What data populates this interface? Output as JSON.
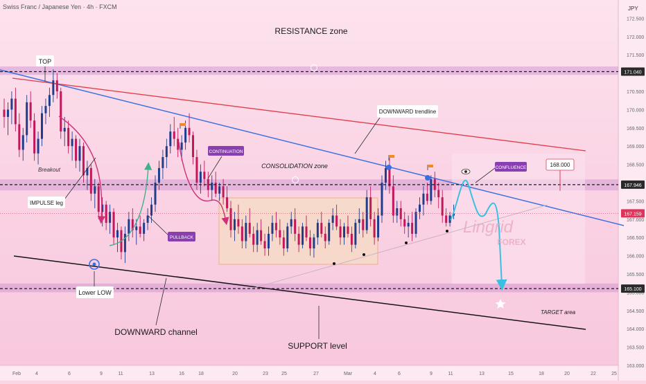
{
  "header": {
    "instrument": "Swiss Franc / Japanese Yen · 4h · FXCM",
    "currency": "JPY"
  },
  "chart_data": {
    "type": "candlestick",
    "ylim": [
      163.0,
      173.0
    ],
    "y_ticks": [
      163.0,
      163.5,
      164.0,
      164.5,
      165.0,
      165.5,
      166.0,
      166.5,
      167.0,
      167.5,
      168.0,
      168.5,
      169.0,
      169.5,
      170.0,
      170.5,
      171.0,
      171.5,
      172.0,
      172.5
    ],
    "x_ticks": [
      "Feb",
      "4",
      "6",
      "9",
      "11",
      "13",
      "16",
      "18",
      "20",
      "23",
      "25",
      "27",
      "Mar",
      "4",
      "6",
      "9",
      "11",
      "13",
      "15",
      "18",
      "20",
      "22",
      "25"
    ],
    "price_labels": [
      {
        "value": 171.04,
        "text": "171.040",
        "color": "#2a2a2a"
      },
      {
        "value": 167.946,
        "text": "167.946",
        "color": "#2a2a2a"
      },
      {
        "value": 167.159,
        "text": "167.159",
        "color": "#e0325a"
      },
      {
        "value": 165.1,
        "text": "165.100",
        "color": "#2a2a2a"
      }
    ],
    "zones": [
      {
        "name": "resistance",
        "low": 170.95,
        "high": 171.18
      },
      {
        "name": "consolidation-top",
        "low": 167.79,
        "high": 168.09
      },
      {
        "name": "support",
        "low": 165.0,
        "high": 165.24
      }
    ],
    "annotations": {
      "resistance_zone": "RESISTANCE zone",
      "top": "TOP",
      "downward_trendline": "DOWNWARD trendline",
      "consolidation_zone": "CONSOLIDATION zone",
      "continuation": "CONTINUATION",
      "breakout": "Breakout",
      "impulse_leg": "IMPULSE leg",
      "pullback": "PULLBACK",
      "confluence": "CONFLUENCE",
      "target_level": "168.000",
      "lower_low": "Lower LOW",
      "downward_channel": "DOWNWARD channel",
      "support_level": "SUPPORT level",
      "target_area": "TARGET area"
    },
    "watermark": {
      "brand": "Lingrid",
      "sub": "FOREX"
    },
    "candles": [
      [
        170.0,
        170.3,
        169.5,
        169.8
      ],
      [
        169.8,
        170.2,
        169.3,
        170.0
      ],
      [
        170.0,
        170.5,
        169.6,
        170.3
      ],
      [
        170.3,
        170.6,
        169.4,
        169.6
      ],
      [
        169.6,
        169.9,
        168.7,
        168.9
      ],
      [
        168.9,
        169.5,
        168.6,
        169.3
      ],
      [
        169.3,
        170.4,
        169.1,
        170.2
      ],
      [
        170.2,
        170.5,
        169.5,
        169.7
      ],
      [
        169.7,
        169.9,
        168.6,
        168.8
      ],
      [
        168.8,
        169.4,
        168.5,
        169.2
      ],
      [
        169.2,
        170.1,
        169.0,
        169.9
      ],
      [
        169.9,
        170.3,
        169.6,
        170.1
      ],
      [
        170.1,
        170.6,
        169.8,
        170.4
      ],
      [
        170.4,
        171.1,
        170.2,
        170.8
      ],
      [
        170.8,
        171.0,
        170.3,
        170.5
      ],
      [
        170.5,
        170.6,
        169.2,
        169.4
      ],
      [
        169.4,
        169.8,
        169.0,
        169.5
      ],
      [
        169.5,
        169.7,
        168.8,
        169.0
      ],
      [
        169.0,
        169.4,
        168.6,
        169.2
      ],
      [
        169.2,
        169.3,
        168.4,
        168.6
      ],
      [
        168.6,
        169.2,
        168.3,
        169.0
      ],
      [
        169.0,
        169.1,
        168.0,
        168.2
      ],
      [
        168.2,
        168.6,
        167.8,
        168.4
      ],
      [
        168.4,
        168.5,
        167.5,
        167.7
      ],
      [
        167.7,
        168.1,
        167.3,
        167.9
      ],
      [
        167.9,
        168.0,
        167.0,
        167.2
      ],
      [
        167.2,
        167.6,
        166.8,
        167.4
      ],
      [
        167.4,
        167.5,
        166.7,
        166.9
      ],
      [
        166.9,
        167.4,
        166.6,
        167.2
      ],
      [
        167.2,
        167.3,
        166.3,
        166.5
      ],
      [
        166.5,
        166.9,
        166.1,
        166.7
      ],
      [
        166.7,
        166.8,
        165.9,
        166.1
      ],
      [
        166.1,
        166.8,
        165.8,
        166.6
      ],
      [
        166.6,
        167.2,
        166.4,
        167.0
      ],
      [
        167.0,
        167.3,
        166.5,
        166.7
      ],
      [
        166.7,
        167.0,
        166.3,
        166.8
      ],
      [
        166.8,
        167.1,
        166.5,
        166.6
      ],
      [
        166.6,
        167.0,
        166.4,
        166.9
      ],
      [
        166.9,
        167.3,
        166.7,
        167.1
      ],
      [
        167.1,
        167.6,
        166.9,
        167.4
      ],
      [
        167.4,
        168.2,
        167.2,
        168.0
      ],
      [
        168.0,
        168.6,
        167.8,
        168.4
      ],
      [
        168.4,
        168.9,
        168.1,
        168.7
      ],
      [
        168.7,
        169.2,
        168.4,
        169.0
      ],
      [
        169.0,
        169.6,
        168.8,
        169.4
      ],
      [
        169.4,
        169.8,
        169.0,
        169.2
      ],
      [
        169.2,
        169.5,
        168.7,
        168.9
      ],
      [
        168.9,
        169.3,
        168.6,
        169.1
      ],
      [
        169.1,
        169.7,
        168.9,
        169.5
      ],
      [
        169.5,
        169.9,
        169.1,
        169.3
      ],
      [
        169.3,
        169.4,
        168.5,
        168.7
      ],
      [
        168.7,
        168.9,
        167.8,
        168.0
      ],
      [
        168.0,
        168.5,
        167.7,
        168.3
      ],
      [
        168.3,
        168.6,
        167.9,
        168.1
      ],
      [
        168.1,
        168.3,
        167.6,
        167.8
      ],
      [
        167.8,
        168.2,
        167.5,
        168.0
      ],
      [
        168.0,
        168.3,
        167.6,
        167.7
      ],
      [
        167.7,
        168.0,
        167.5,
        167.9
      ],
      [
        167.9,
        168.1,
        167.4,
        167.6
      ],
      [
        167.6,
        167.9,
        167.2,
        167.3
      ],
      [
        167.3,
        167.5,
        166.5,
        166.7
      ],
      [
        166.7,
        167.2,
        166.4,
        167.0
      ],
      [
        167.0,
        167.4,
        166.6,
        166.8
      ],
      [
        166.8,
        167.0,
        166.2,
        166.4
      ],
      [
        166.4,
        167.1,
        166.2,
        166.9
      ],
      [
        166.9,
        167.3,
        166.5,
        166.6
      ],
      [
        166.6,
        166.8,
        166.1,
        166.3
      ],
      [
        166.3,
        166.9,
        166.1,
        166.7
      ],
      [
        166.7,
        167.0,
        166.3,
        166.4
      ],
      [
        166.4,
        166.6,
        166.0,
        166.2
      ],
      [
        166.2,
        166.8,
        166.0,
        166.6
      ],
      [
        166.6,
        167.1,
        166.4,
        166.9
      ],
      [
        166.9,
        167.2,
        166.5,
        166.7
      ],
      [
        166.7,
        167.0,
        166.3,
        166.5
      ],
      [
        166.5,
        166.7,
        166.0,
        166.2
      ],
      [
        166.2,
        166.9,
        166.1,
        166.8
      ],
      [
        166.8,
        167.2,
        166.6,
        167.0
      ],
      [
        167.0,
        167.3,
        166.4,
        166.6
      ],
      [
        166.6,
        166.8,
        166.1,
        166.3
      ],
      [
        166.3,
        166.9,
        166.2,
        166.8
      ],
      [
        166.8,
        167.1,
        166.4,
        166.5
      ],
      [
        166.5,
        166.7,
        166.0,
        166.2
      ],
      [
        166.2,
        166.6,
        165.95,
        166.5
      ],
      [
        166.5,
        167.0,
        166.3,
        166.9
      ],
      [
        166.9,
        167.2,
        166.5,
        166.6
      ],
      [
        166.6,
        166.8,
        166.2,
        166.4
      ],
      [
        166.4,
        167.0,
        166.3,
        166.9
      ],
      [
        166.9,
        167.3,
        166.7,
        167.1
      ],
      [
        167.1,
        167.4,
        166.7,
        166.8
      ],
      [
        166.8,
        167.0,
        166.3,
        166.5
      ],
      [
        166.5,
        166.9,
        166.3,
        166.8
      ],
      [
        166.8,
        167.1,
        166.5,
        166.6
      ],
      [
        166.6,
        166.8,
        166.1,
        166.3
      ],
      [
        166.3,
        167.0,
        166.2,
        166.9
      ],
      [
        166.9,
        167.3,
        166.6,
        167.0
      ],
      [
        167.0,
        167.2,
        166.5,
        166.7
      ],
      [
        166.7,
        167.8,
        166.6,
        167.6
      ],
      [
        167.6,
        167.9,
        166.8,
        167.0
      ],
      [
        167.0,
        167.2,
        166.3,
        166.5
      ],
      [
        166.5,
        167.3,
        166.4,
        167.1
      ],
      [
        167.1,
        168.2,
        166.9,
        168.0
      ],
      [
        168.0,
        168.6,
        167.8,
        168.4
      ],
      [
        168.4,
        168.7,
        167.7,
        167.9
      ],
      [
        167.9,
        168.2,
        166.9,
        167.1
      ],
      [
        167.1,
        167.5,
        166.9,
        167.3
      ],
      [
        167.3,
        167.5,
        166.8,
        167.0
      ],
      [
        167.0,
        167.2,
        166.6,
        166.8
      ],
      [
        166.8,
        167.1,
        166.5,
        166.9
      ],
      [
        166.9,
        167.2,
        166.4,
        166.6
      ],
      [
        166.6,
        167.3,
        166.5,
        167.2
      ],
      [
        167.2,
        167.6,
        167.0,
        167.4
      ],
      [
        167.4,
        167.9,
        167.1,
        167.7
      ],
      [
        167.7,
        168.0,
        167.4,
        167.5
      ],
      [
        167.5,
        168.2,
        167.4,
        168.1
      ],
      [
        168.1,
        168.3,
        167.6,
        167.8
      ],
      [
        167.8,
        168.0,
        167.3,
        167.6
      ],
      [
        167.6,
        167.8,
        166.9,
        167.1
      ],
      [
        167.1,
        167.3,
        166.8,
        166.9
      ],
      [
        166.9,
        167.2,
        166.8,
        167.1
      ],
      [
        167.1,
        167.4,
        167.0,
        167.16
      ]
    ]
  }
}
